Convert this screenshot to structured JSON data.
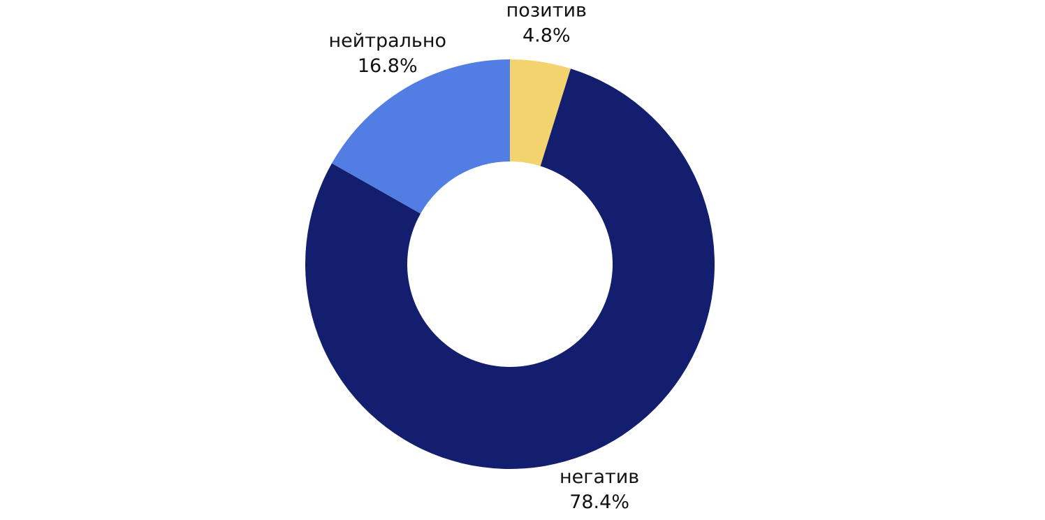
{
  "chart_data": {
    "type": "pie",
    "categories": [
      "позитив",
      "негатив",
      "нейтрально"
    ],
    "values": [
      4.8,
      78.4,
      16.8
    ],
    "value_labels": [
      "4.8%",
      "78.4%",
      "16.8%"
    ],
    "colors": [
      "#f3d36e",
      "#131f6e",
      "#527de2"
    ]
  }
}
